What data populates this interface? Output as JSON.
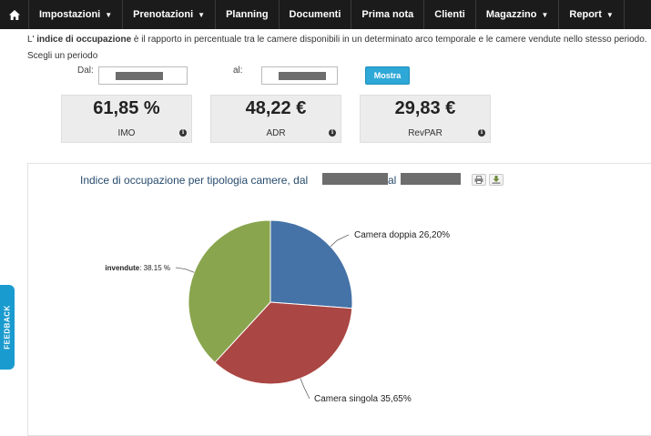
{
  "nav": {
    "items": [
      {
        "label": "Impostazioni",
        "caret": true
      },
      {
        "label": "Prenotazioni",
        "caret": true
      },
      {
        "label": "Planning",
        "caret": false
      },
      {
        "label": "Documenti",
        "caret": false
      },
      {
        "label": "Prima nota",
        "caret": false
      },
      {
        "label": "Clienti",
        "caret": false
      },
      {
        "label": "Magazzino",
        "caret": true
      },
      {
        "label": "Report",
        "caret": true
      }
    ]
  },
  "intro": {
    "prefix": "L' ",
    "bold": "indice di occupazione",
    "rest": " è il rapporto in percentuale tra le camere disponibili in un determinato arco temporale e le camere vendute nello stesso periodo."
  },
  "period": {
    "prompt": "Scegli un periodo",
    "from_label": "Dal:",
    "to_label": "al:",
    "button": "Mostra"
  },
  "kpis": [
    {
      "value": "61,85 %",
      "label": "IMO"
    },
    {
      "value": "48,22 €",
      "label": "ADR"
    },
    {
      "value": "29,83 €",
      "label": "RevPAR"
    }
  ],
  "chart": {
    "title_prefix": "Indice di occupazione per tipologia camere, dal",
    "title_mid": "al"
  },
  "chart_data": {
    "type": "pie",
    "slices": [
      {
        "name": "Camera doppia",
        "value": 26.2,
        "label": "Camera doppia 26,20%",
        "color": "#4572a7"
      },
      {
        "name": "Camera singola",
        "value": 35.65,
        "label": "Camera singola 35,65%",
        "color": "#aa4643"
      },
      {
        "name": "invendute",
        "value": 38.15,
        "label": "38.15 %",
        "color": "#89a54e"
      }
    ]
  },
  "feedback": "FEEDBACK"
}
